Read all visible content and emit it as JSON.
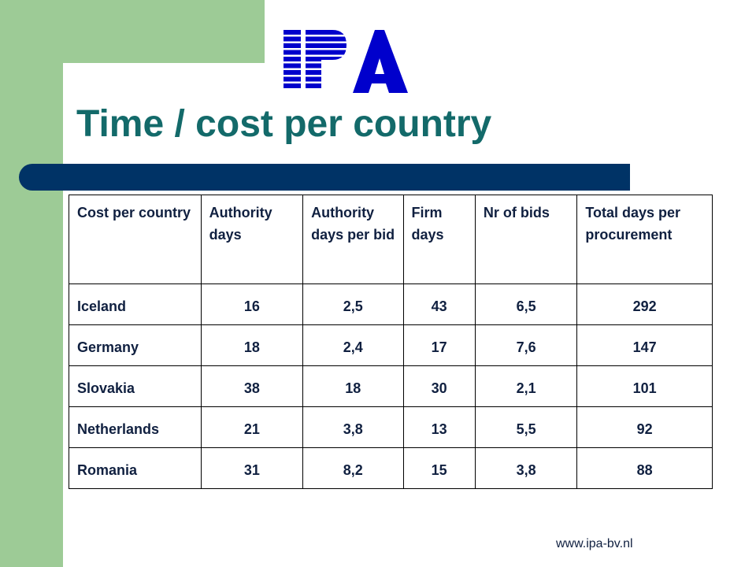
{
  "slide": {
    "title": "Time / cost per country",
    "logo_text": "IPA",
    "url": "www.ipa-bv.nl"
  },
  "table": {
    "headers": [
      "Cost per country",
      "Authority days",
      "Authority days per bid",
      "Firm days",
      "Nr of bids",
      "Total days per procurement"
    ],
    "rows": [
      [
        "Iceland",
        "16",
        "2,5",
        "43",
        "6,5",
        "292"
      ],
      [
        "Germany",
        "18",
        "2,4",
        "17",
        "7,6",
        "147"
      ],
      [
        "Slovakia",
        "38",
        "18",
        "30",
        "2,1",
        "101"
      ],
      [
        "Netherlands",
        "21",
        "3,8",
        "13",
        "5,5",
        "92"
      ],
      [
        "Romania",
        "31",
        "8,2",
        "15",
        "3,8",
        "88"
      ]
    ]
  },
  "colors": {
    "green_accent": "#9dcb96",
    "title_color": "#136a6a",
    "bar_color": "#003366",
    "logo_blue": "#0000cc"
  }
}
